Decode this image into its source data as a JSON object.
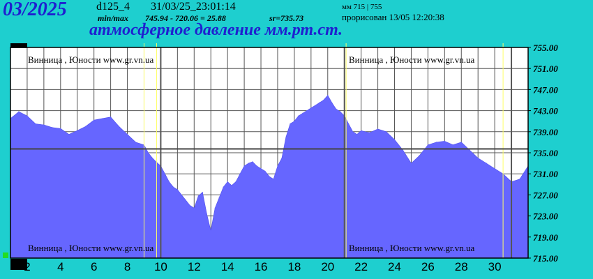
{
  "header": {
    "period": "03/2025",
    "code": "d125_4",
    "timestamp": "31/03/25_23:01:14",
    "minmax_label": "min/max",
    "minmax_value": "745.94 - 720.06 = 25.88",
    "average": "sr=735.73",
    "mm_range": "мм 715 | 755",
    "drawn": "прорисован 13/05 12:20:38",
    "subtitle": "атмосферное давление мм.рт.ст."
  },
  "colors": {
    "background": "#1ecfcf",
    "plot_background": "#ffffff",
    "fill": "#6666ff",
    "grid": "#555555",
    "title": "#1f1fd0",
    "marker": "#ffff66"
  },
  "chart_data": {
    "type": "area",
    "y_unit": "мм рт. ст.",
    "ylim": [
      715,
      755
    ],
    "xlim": [
      1,
      32
    ],
    "y_ticks": [
      "755.00",
      "751.00",
      "747.00",
      "743.00",
      "739.00",
      "735.00",
      "731.00",
      "727.00",
      "723.00",
      "719.00",
      "715.00"
    ],
    "x_ticks": [
      "2",
      "4",
      "6",
      "8",
      "10",
      "12",
      "14",
      "16",
      "18",
      "20",
      "22",
      "24",
      "26",
      "28",
      "30"
    ],
    "reference_line": 735.73,
    "grid": true,
    "watermark": "Винница , Юности   www.gr.vn.ua",
    "x": [
      1.0,
      1.5,
      2.0,
      2.5,
      3.0,
      3.5,
      4.0,
      4.5,
      5.0,
      5.5,
      6.0,
      6.5,
      7.0,
      7.5,
      8.0,
      8.5,
      9.0,
      9.25,
      9.5,
      9.75,
      10.0,
      10.25,
      10.5,
      10.75,
      11.0,
      11.25,
      11.5,
      11.75,
      12.0,
      12.25,
      12.5,
      12.75,
      13.0,
      13.25,
      13.5,
      13.75,
      14.0,
      14.25,
      14.5,
      14.75,
      15.0,
      15.25,
      15.5,
      15.75,
      16.0,
      16.25,
      16.5,
      16.75,
      17.0,
      17.25,
      17.5,
      17.75,
      18.0,
      18.25,
      18.5,
      18.75,
      19.0,
      19.25,
      19.5,
      19.75,
      20.0,
      20.25,
      20.5,
      20.75,
      21.0,
      21.25,
      21.5,
      21.75,
      22.0,
      22.5,
      23.0,
      23.5,
      24.0,
      24.5,
      25.0,
      25.5,
      26.0,
      26.5,
      27.0,
      27.5,
      28.0,
      28.5,
      29.0,
      29.5,
      30.0,
      30.5,
      31.0,
      31.5,
      32.0
    ],
    "values": [
      741.5,
      742.8,
      742.0,
      740.5,
      740.3,
      739.8,
      739.6,
      738.5,
      739.2,
      740.0,
      741.2,
      741.5,
      741.8,
      740.0,
      738.5,
      737.0,
      736.5,
      735.0,
      734.0,
      733.2,
      732.5,
      731.0,
      729.5,
      728.5,
      728.0,
      727.0,
      726.0,
      725.0,
      724.5,
      726.8,
      727.5,
      723.5,
      720.2,
      724.5,
      726.5,
      728.5,
      729.5,
      728.8,
      729.5,
      731.0,
      732.5,
      733.0,
      733.3,
      732.5,
      732.0,
      731.5,
      730.5,
      730.0,
      732.5,
      734.0,
      738.0,
      740.5,
      741.0,
      742.0,
      742.5,
      743.0,
      743.5,
      744.0,
      744.5,
      745.0,
      745.9,
      744.5,
      743.3,
      742.8,
      742.0,
      740.5,
      739.0,
      738.5,
      739.2,
      738.8,
      739.5,
      739.0,
      737.5,
      735.5,
      733.0,
      734.5,
      736.5,
      737.0,
      737.2,
      736.5,
      737.0,
      735.5,
      734.0,
      733.0,
      732.0,
      731.0,
      729.5,
      730.0,
      732.5
    ]
  }
}
